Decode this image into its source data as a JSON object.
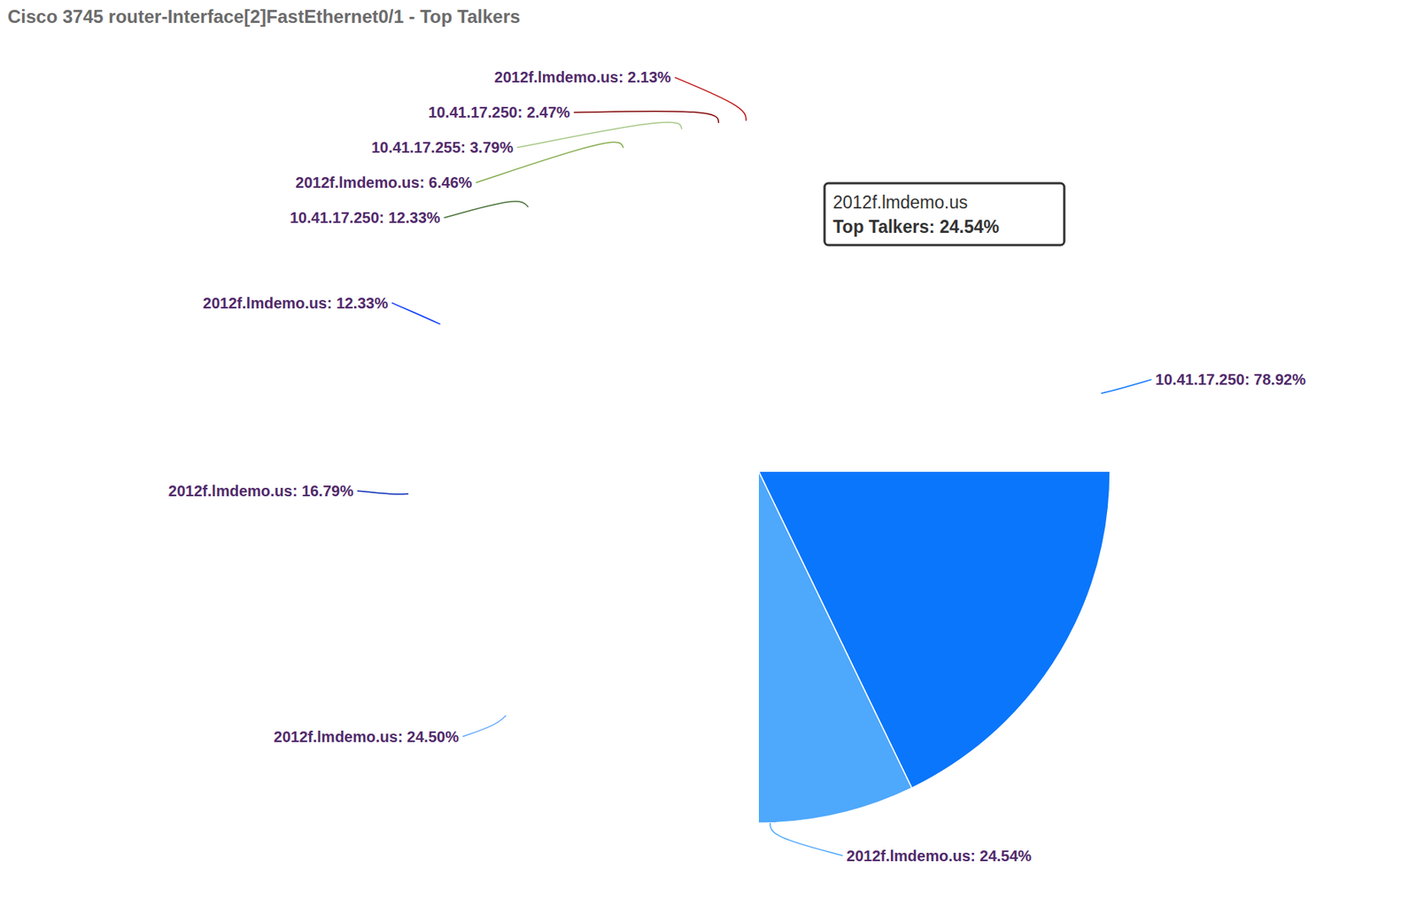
{
  "chart_data": {
    "type": "pie",
    "title": "Cisco 3745 router-Interface[2]FastEthernet0/1 - Top Talkers",
    "categories": [
      "10.41.17.250",
      "2012f.lmdemo.us",
      "2012f.lmdemo.us",
      "2012f.lmdemo.us",
      "2012f.lmdemo.us",
      "10.41.17.250",
      "2012f.lmdemo.us",
      "10.41.17.255",
      "10.41.17.250",
      "2012f.lmdemo.us"
    ],
    "values": [
      78.92,
      24.54,
      24.5,
      16.79,
      12.33,
      12.33,
      6.46,
      3.79,
      2.47,
      2.13
    ],
    "value_labels": [
      "78.92%",
      "24.54%",
      "24.50%",
      "16.79%",
      "12.33%",
      "12.33%",
      "6.46%",
      "3.79%",
      "2.47%",
      "2.13%"
    ],
    "colors": [
      "#0a76fb",
      "#4ea8fc",
      "#67acfd",
      "#0226b4",
      "#0033ff",
      "#467035",
      "#84ac4b",
      "#a6c785",
      "#7f0000",
      "#bf1111"
    ],
    "data_labels": true,
    "annotations": [
      {
        "title": "2012f.lmdemo.us",
        "text": "Top Talkers: 24.54%"
      }
    ]
  }
}
